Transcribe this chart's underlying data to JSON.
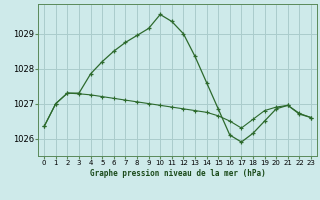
{
  "title": "Graphe pression niveau de la mer (hPa)",
  "bg_color": "#ceeaea",
  "grid_color": "#aacccc",
  "line_color": "#2d6a2d",
  "marker_color": "#2d6a2d",
  "xlim": [
    -0.5,
    23.5
  ],
  "ylim": [
    1025.5,
    1029.85
  ],
  "yticks": [
    1026,
    1027,
    1028,
    1029
  ],
  "xticks": [
    0,
    1,
    2,
    3,
    4,
    5,
    6,
    7,
    8,
    9,
    10,
    11,
    12,
    13,
    14,
    15,
    16,
    17,
    18,
    19,
    20,
    21,
    22,
    23
  ],
  "series1": {
    "x": [
      0,
      1,
      2,
      3,
      4,
      5,
      6,
      7,
      8,
      9,
      10,
      11,
      12,
      13,
      14,
      15,
      16,
      17,
      18,
      19,
      20,
      21,
      22,
      23
    ],
    "y": [
      1026.35,
      1027.0,
      1027.3,
      1027.3,
      1027.85,
      1028.2,
      1028.5,
      1028.75,
      1028.95,
      1029.15,
      1029.55,
      1029.35,
      1029.0,
      1028.35,
      1027.6,
      1026.85,
      1026.1,
      1025.9,
      1026.15,
      1026.5,
      1026.85,
      1026.95,
      1026.7,
      1026.6
    ]
  },
  "series2": {
    "x": [
      0,
      1,
      2,
      3,
      4,
      5,
      6,
      7,
      8,
      9,
      10,
      11,
      12,
      13,
      14,
      15,
      16,
      17,
      18,
      19,
      20,
      21,
      22,
      23
    ],
    "y": [
      1026.35,
      1027.0,
      1027.3,
      1027.28,
      1027.25,
      1027.2,
      1027.15,
      1027.1,
      1027.05,
      1027.0,
      1026.95,
      1026.9,
      1026.85,
      1026.8,
      1026.75,
      1026.65,
      1026.5,
      1026.3,
      1026.55,
      1026.8,
      1026.9,
      1026.95,
      1026.72,
      1026.6
    ]
  }
}
